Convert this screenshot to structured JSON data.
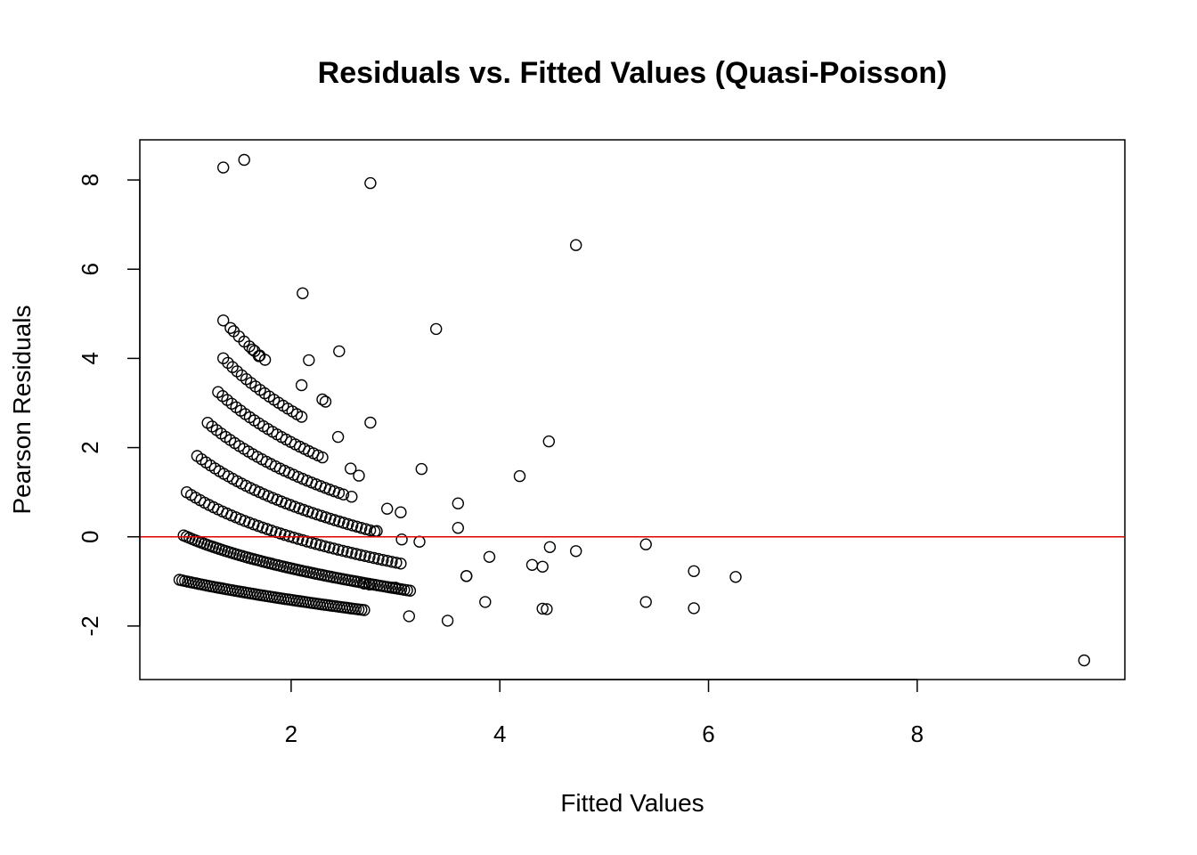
{
  "chart_data": {
    "type": "scatter",
    "title": "Residuals vs. Fitted Values (Quasi-Poisson)",
    "xlabel": "Fitted Values",
    "ylabel": "Pearson Residuals",
    "xlim": [
      0.55,
      9.99
    ],
    "ylim": [
      -3.2,
      8.9
    ],
    "x_ticks": [
      2,
      4,
      6,
      8
    ],
    "y_ticks": [
      -2,
      0,
      2,
      4,
      6,
      8
    ],
    "x_tick_labels": [
      "2",
      "4",
      "6",
      "8"
    ],
    "y_tick_labels": [
      "-2",
      "0",
      "2",
      "4",
      "6",
      "8"
    ],
    "reference_line": {
      "y": 0,
      "color": "#dd0000"
    },
    "marker": {
      "shape": "open-circle",
      "color": "#000000"
    },
    "bands": [
      {
        "count": 0,
        "from": 0.93,
        "to": 2.7
      },
      {
        "count": 1,
        "from": 0.97,
        "to": 3.14
      },
      {
        "count": 2,
        "from": 1.0,
        "to": 3.05
      },
      {
        "count": 3,
        "from": 1.1,
        "to": 2.8
      },
      {
        "count": 4,
        "from": 1.2,
        "to": 2.5
      },
      {
        "count": 5,
        "from": 1.3,
        "to": 2.3
      },
      {
        "count": 6,
        "from": 1.35,
        "to": 2.1
      },
      {
        "count": 7,
        "from": 1.45,
        "to": 1.75
      }
    ],
    "points": [
      [
        1.35,
        8.28
      ],
      [
        1.55,
        8.45
      ],
      [
        2.76,
        7.93
      ],
      [
        4.73,
        6.54
      ],
      [
        2.11,
        5.46
      ],
      [
        3.39,
        4.66
      ],
      [
        1.35,
        4.85
      ],
      [
        1.42,
        4.68
      ],
      [
        2.46,
        4.16
      ],
      [
        2.17,
        3.96
      ],
      [
        1.63,
        4.2
      ],
      [
        1.69,
        4.05
      ],
      [
        2.1,
        3.4
      ],
      [
        2.3,
        3.08
      ],
      [
        2.33,
        3.03
      ],
      [
        2.76,
        2.56
      ],
      [
        2.45,
        2.24
      ],
      [
        4.47,
        2.14
      ],
      [
        3.25,
        1.52
      ],
      [
        4.19,
        1.36
      ],
      [
        2.57,
        1.53
      ],
      [
        2.65,
        1.37
      ],
      [
        2.58,
        0.9
      ],
      [
        2.92,
        0.63
      ],
      [
        3.05,
        0.55
      ],
      [
        2.82,
        0.13
      ],
      [
        3.6,
        0.75
      ],
      [
        3.6,
        0.2
      ],
      [
        3.06,
        -0.06
      ],
      [
        3.23,
        -0.11
      ],
      [
        3.9,
        -0.45
      ],
      [
        3.68,
        -0.88
      ],
      [
        3.68,
        -0.88
      ],
      [
        4.31,
        -0.63
      ],
      [
        4.41,
        -0.67
      ],
      [
        4.48,
        -0.23
      ],
      [
        4.73,
        -0.32
      ],
      [
        5.4,
        -0.17
      ],
      [
        5.86,
        -0.77
      ],
      [
        6.26,
        -0.9
      ],
      [
        3.86,
        -1.46
      ],
      [
        3.5,
        -1.88
      ],
      [
        3.13,
        -1.78
      ],
      [
        4.41,
        -1.61
      ],
      [
        4.45,
        -1.62
      ],
      [
        5.4,
        -1.46
      ],
      [
        5.86,
        -1.6
      ],
      [
        9.6,
        -2.77
      ],
      [
        2.97,
        -1.14
      ],
      [
        3.0,
        -1.14
      ],
      [
        2.7,
        -1.05
      ],
      [
        2.75,
        -1.07
      ]
    ]
  }
}
